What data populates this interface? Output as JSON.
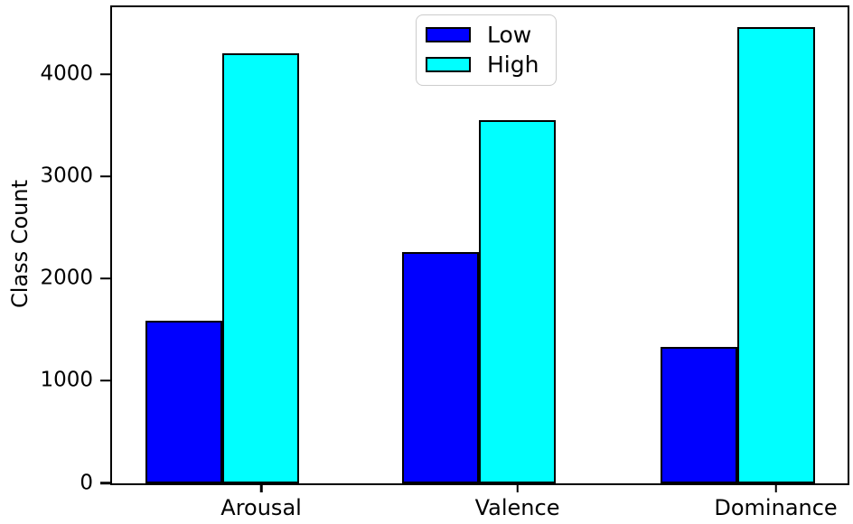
{
  "figure": {
    "background": "#ffffff",
    "text_color": "#000000"
  },
  "chart_data": {
    "type": "bar",
    "title": "",
    "categories": [
      "Arousal",
      "Valence",
      "Dominance"
    ],
    "series": [
      {
        "name": "Low",
        "color": "#0000ff",
        "values": [
          1590,
          2260,
          1335
        ]
      },
      {
        "name": "High",
        "color": "#00ffff",
        "values": [
          4200,
          3545,
          4455
        ]
      }
    ],
    "xlabel": "",
    "ylabel": "Class Count",
    "ylim": [
      0,
      4650
    ],
    "yticks": [
      0,
      1000,
      2000,
      3000,
      4000
    ],
    "bar_edge_color": "#000000",
    "grid": false,
    "legend": {
      "position": "upper center",
      "entries": [
        "Low",
        "High"
      ]
    }
  }
}
